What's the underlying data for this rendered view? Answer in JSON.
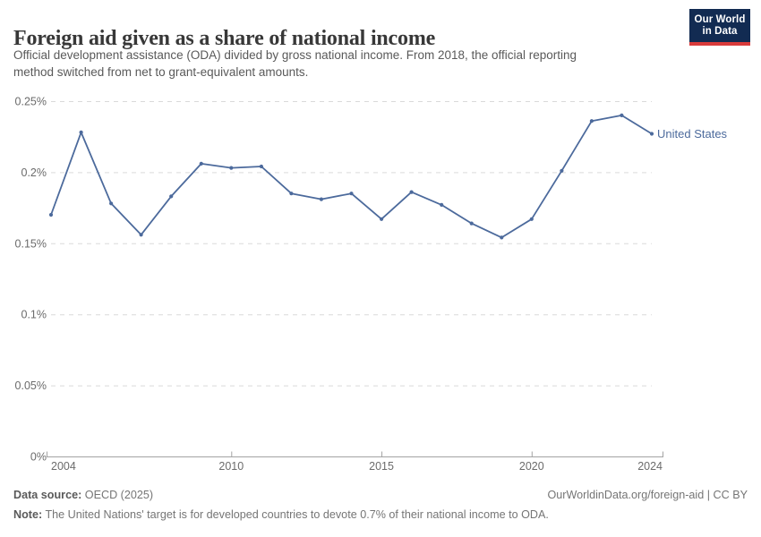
{
  "header": {
    "title": "Foreign aid given as a share of national income",
    "subtitle_line1": "Official development assistance (ODA) divided by gross national income. From 2018, the official reporting",
    "subtitle_line2": "method switched from net to grant-equivalent amounts.",
    "logo": {
      "line1": "Our World",
      "line2": "in Data"
    }
  },
  "chart_data": {
    "type": "line",
    "title": "Foreign aid given as a share of national income",
    "x": [
      2004,
      2005,
      2006,
      2007,
      2008,
      2009,
      2010,
      2011,
      2012,
      2013,
      2014,
      2015,
      2016,
      2017,
      2018,
      2019,
      2020,
      2021,
      2022,
      2023,
      2024
    ],
    "series": [
      {
        "name": "United States",
        "color": "#4c6a9c",
        "values": [
          0.17,
          0.228,
          0.178,
          0.156,
          0.183,
          0.206,
          0.203,
          0.204,
          0.185,
          0.181,
          0.185,
          0.167,
          0.186,
          0.177,
          0.164,
          0.154,
          0.167,
          0.201,
          0.236,
          0.24,
          0.227
        ]
      }
    ],
    "xlabel": "",
    "ylabel": "",
    "unit": "%",
    "xlim": [
      2004,
      2024
    ],
    "ylim": [
      0,
      0.25
    ],
    "xticks": [
      2004,
      2010,
      2015,
      2020,
      2024
    ],
    "yticks": [
      {
        "value": 0,
        "label": "0%"
      },
      {
        "value": 0.05,
        "label": "0.05%"
      },
      {
        "value": 0.1,
        "label": "0.1%"
      },
      {
        "value": 0.15,
        "label": "0.15%"
      },
      {
        "value": 0.2,
        "label": "0.2%"
      },
      {
        "value": 0.25,
        "label": "0.25%"
      }
    ],
    "grid": "horizontal-dashed",
    "legend_position": "end-of-line-label"
  },
  "footer": {
    "datasource_label": "Data source:",
    "datasource_value": " OECD (2025)",
    "link": "OurWorldinData.org/foreign-aid | CC BY",
    "note_label": "Note:",
    "note_value": " The United Nations' target is for developed countries to devote 0.7% of their national income to ODA."
  },
  "colors": {
    "series_blue": "#4c6a9c",
    "logo_navy": "#122b52",
    "logo_red": "#d93b3b",
    "title_text": "#383838",
    "muted_text": "#757575"
  }
}
